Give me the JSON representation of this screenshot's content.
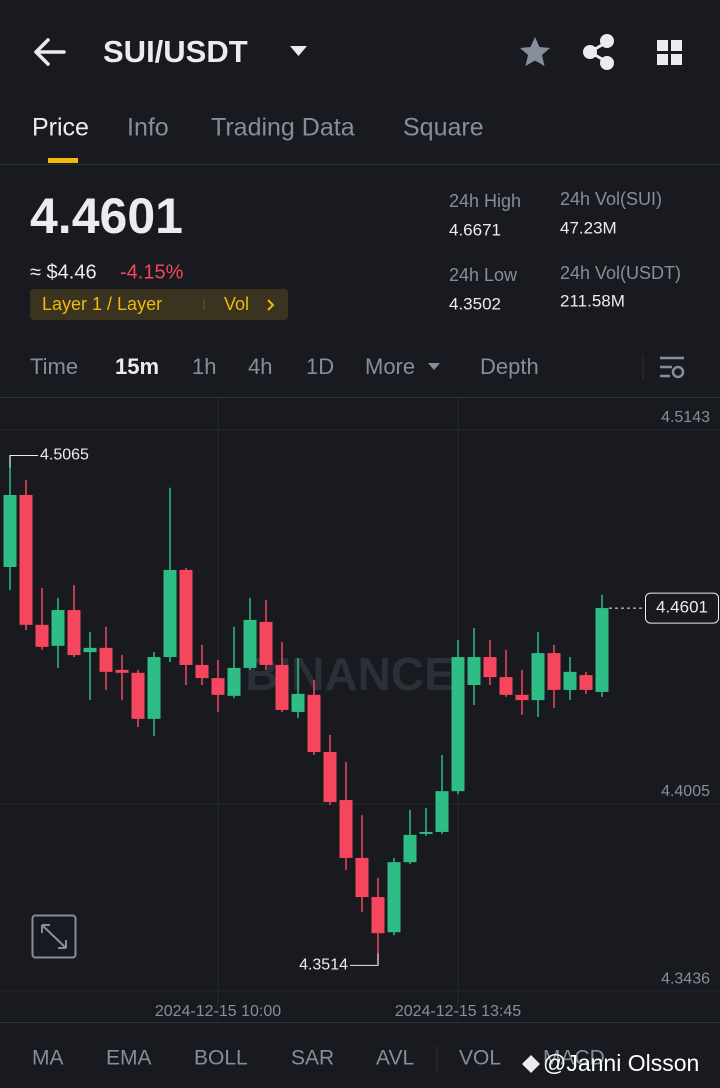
{
  "header": {
    "pair": "SUI/USDT"
  },
  "tabs": [
    "Price",
    "Info",
    "Trading Data",
    "Square"
  ],
  "ticker": {
    "price": "4.4601",
    "fiat": "≈ $4.46",
    "change": "-4.15%",
    "tag": "Layer 1 / Layer",
    "tag_extra": "Vol",
    "stats": [
      {
        "label": "24h High",
        "value": "4.6671"
      },
      {
        "label": "24h Vol(SUI)",
        "value": "47.23M"
      },
      {
        "label": "24h Low",
        "value": "4.3502"
      },
      {
        "label": "24h Vol(USDT)",
        "value": "211.58M"
      }
    ]
  },
  "intervals": [
    "Time",
    "15m",
    "1h",
    "4h",
    "1D",
    "More",
    "Depth"
  ],
  "chart_watermark": "BINANCE",
  "chart_data": {
    "type": "candlestick",
    "categories": [
      null,
      null,
      null,
      null,
      null,
      null,
      null,
      null,
      null,
      null,
      null,
      null,
      null,
      "2024-12-15 10:00",
      null,
      null,
      null,
      null,
      null,
      null,
      null,
      null,
      null,
      null,
      null,
      null,
      null,
      null,
      "2024-12-15 13:45",
      null,
      null,
      null,
      null,
      null,
      null,
      null,
      null,
      null
    ],
    "open": [
      4.4726,
      4.4945,
      4.455,
      4.4486,
      4.4595,
      4.4467,
      4.448,
      4.4413,
      4.4404,
      4.4264,
      4.4452,
      4.4717,
      4.4428,
      4.4388,
      4.4334,
      4.4419,
      4.4559,
      4.4428,
      4.4285,
      4.4337,
      4.4163,
      4.4017,
      4.3841,
      4.3722,
      4.3615,
      4.3828,
      4.3914,
      4.392,
      4.4044,
      4.4367,
      4.4452,
      4.4391,
      4.4337,
      4.4321,
      4.4464,
      4.4352,
      4.4397,
      4.4346
    ],
    "close": [
      4.4945,
      4.455,
      4.4483,
      4.4595,
      4.4458,
      4.448,
      4.4407,
      4.4404,
      4.4264,
      4.4452,
      4.4717,
      4.4428,
      4.4388,
      4.4337,
      4.4419,
      4.4565,
      4.4428,
      4.4291,
      4.434,
      4.4163,
      4.4011,
      4.3841,
      4.3722,
      4.3612,
      4.3828,
      4.3911,
      4.392,
      4.4044,
      4.4452,
      4.4452,
      4.4391,
      4.4337,
      4.4321,
      4.4464,
      4.4352,
      4.4407,
      4.4352,
      4.4601
    ],
    "high": [
      4.5065,
      4.4991,
      4.4662,
      4.4632,
      4.4671,
      4.4528,
      4.4544,
      4.4458,
      4.4413,
      4.4467,
      4.4967,
      4.4723,
      4.4489,
      4.4443,
      4.4544,
      4.4632,
      4.4626,
      4.4498,
      4.4449,
      4.4382,
      4.4215,
      4.4133,
      4.3971,
      4.378,
      4.3841,
      4.3987,
      4.3993,
      4.4154,
      4.4504,
      4.454,
      4.4504,
      4.4474,
      4.4413,
      4.4528,
      4.4489,
      4.4452,
      4.4407,
      4.4641
    ],
    "low": [
      4.4656,
      4.4534,
      4.4474,
      4.4419,
      4.4452,
      4.4321,
      4.4352,
      4.4321,
      4.4239,
      4.4212,
      4.4437,
      4.4367,
      4.4367,
      4.4285,
      4.4327,
      4.4413,
      4.4413,
      4.4285,
      4.4267,
      4.4154,
      4.4002,
      4.3804,
      4.3676,
      4.3514,
      4.3606,
      4.3822,
      4.3908,
      4.3914,
      4.4035,
      4.4306,
      4.4367,
      4.4331,
      4.4276,
      4.427,
      4.4297,
      4.4321,
      4.434,
      4.4331
    ],
    "up_color": "#2ebd85",
    "down_color": "#f6465d",
    "ylim": [
      4.3424,
      4.524
    ],
    "yticks": [
      4.5143,
      4.4005,
      4.3436
    ],
    "high_label": 4.5065,
    "low_label": 4.3514,
    "last_price": 4.4601
  },
  "indicators": [
    "MA",
    "EMA",
    "BOLL",
    "SAR",
    "AVL",
    "VOL",
    "MACD"
  ],
  "watermark": "@Janni Olsson"
}
